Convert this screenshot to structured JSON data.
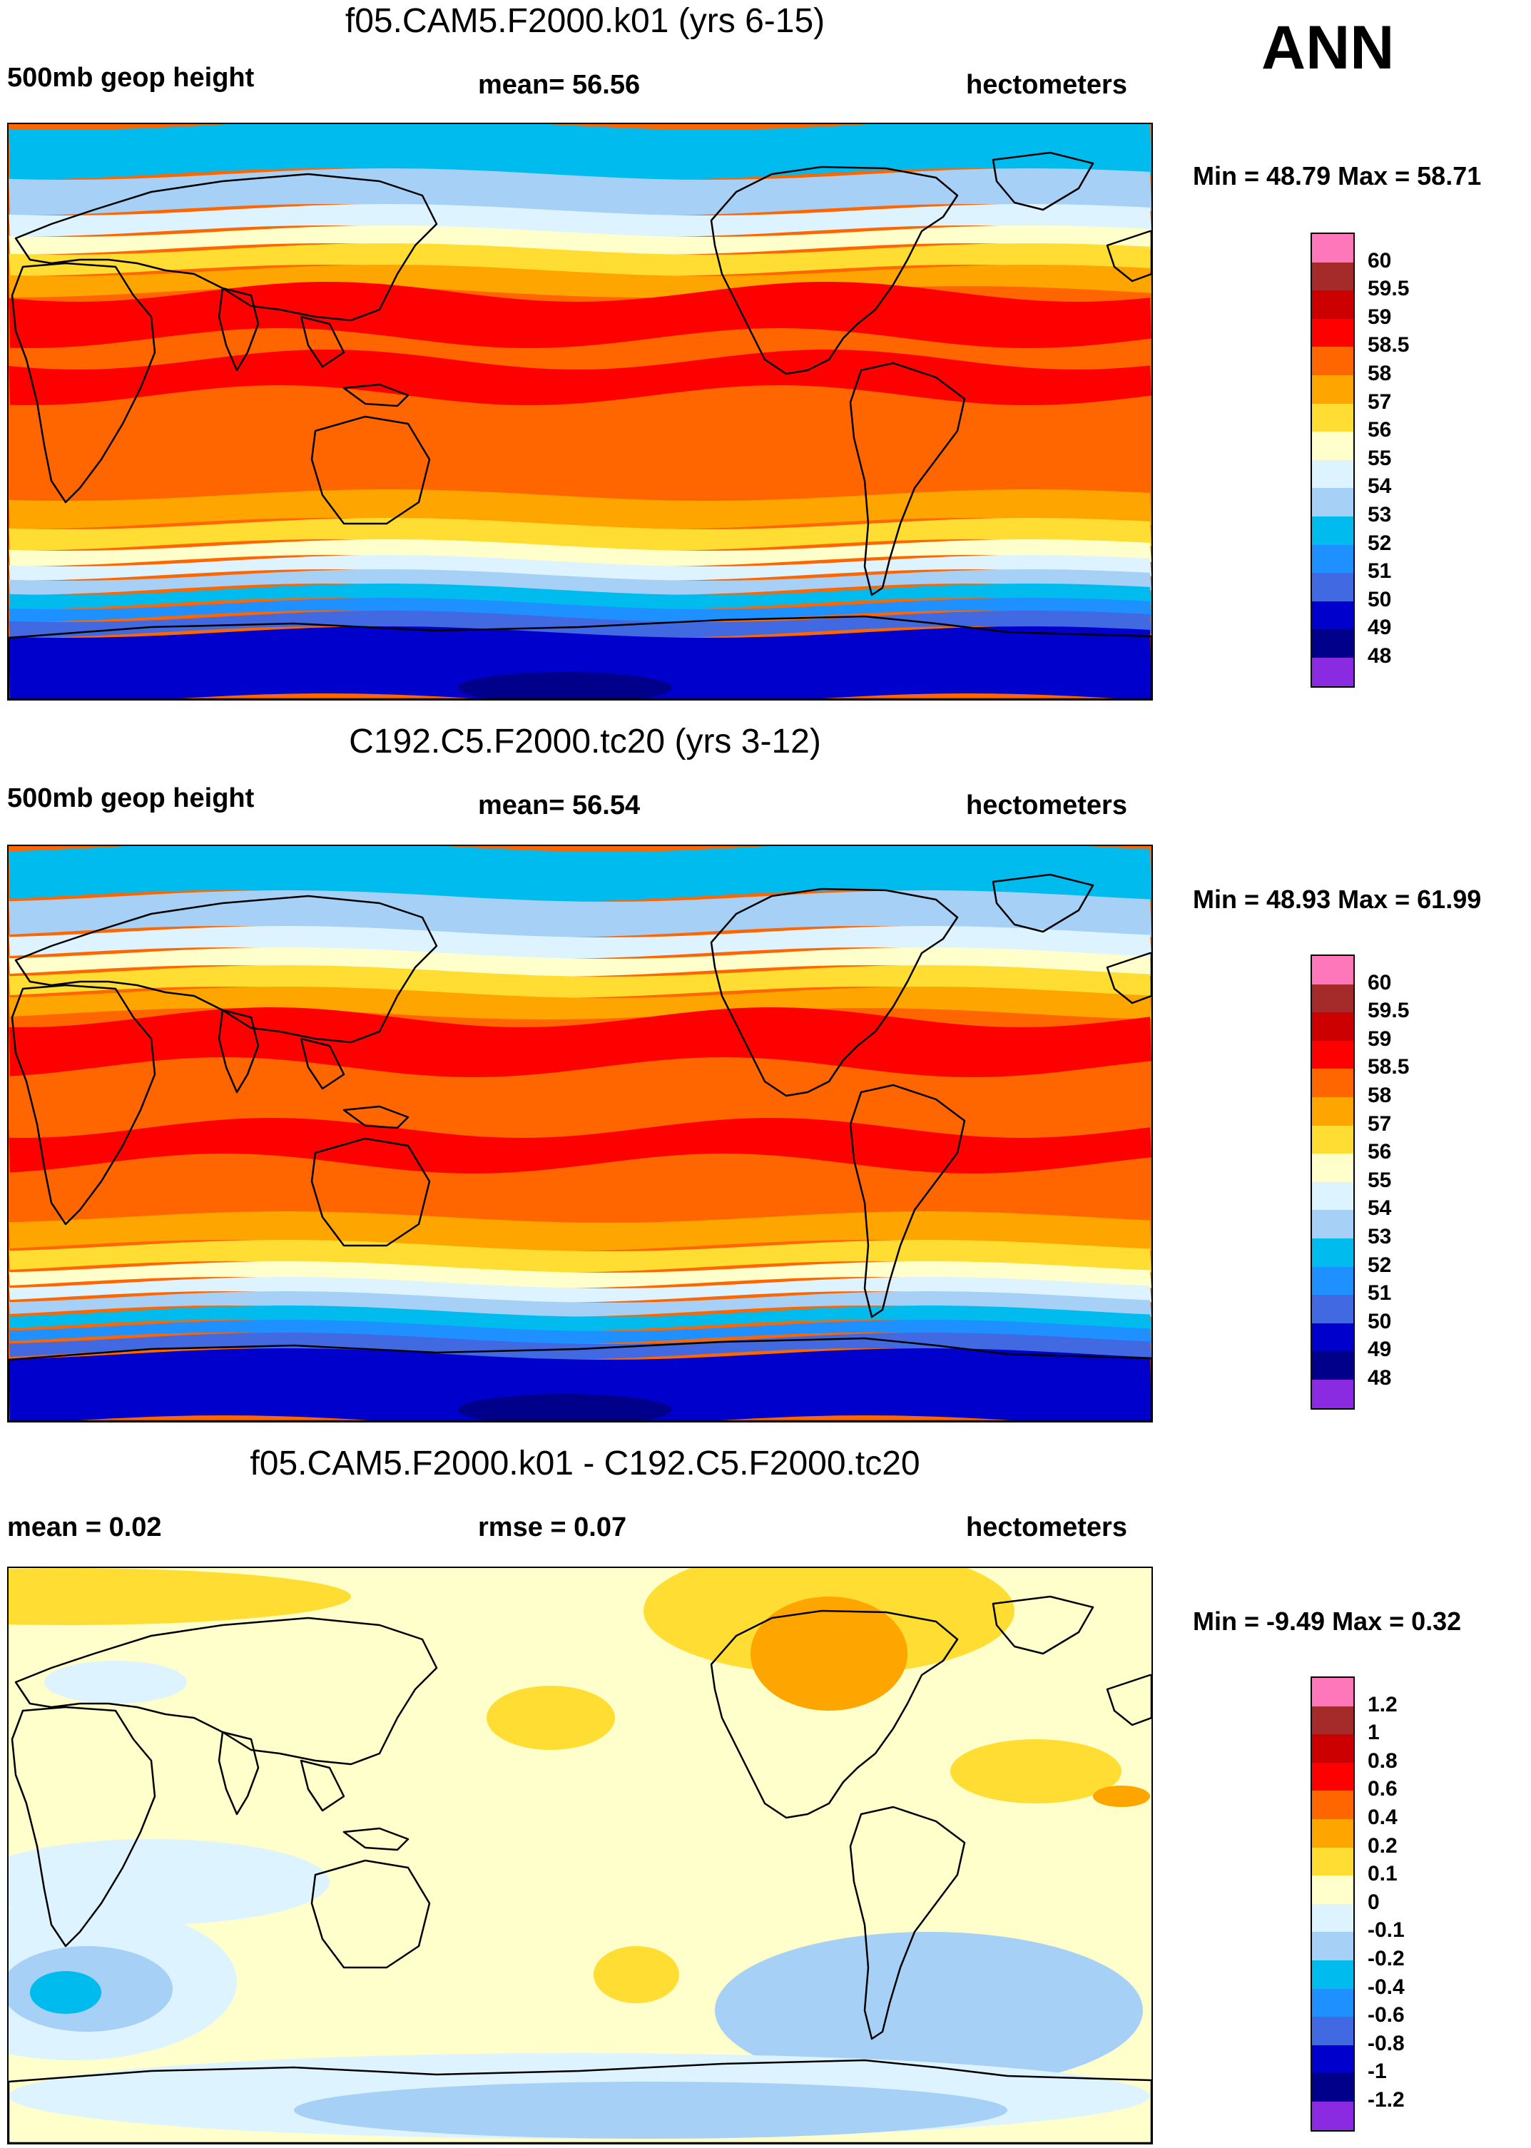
{
  "season": "ANN",
  "panels": [
    {
      "id": "panel1",
      "title": "f05.CAM5.F2000.k01 (yrs 6-15)",
      "left_label": "500mb geop height",
      "center_label": "mean=  56.56",
      "right_label": "hectometers",
      "minmax": "Min =  48.79 Max =  58.71",
      "map_type": "absolute",
      "colorbar": {
        "colors": [
          "#ff77bb",
          "#a52a2a",
          "#cc0000",
          "#ff0000",
          "#ff6600",
          "#ffa500",
          "#ffdd33",
          "#ffffcc",
          "#ddf3ff",
          "#a6d0f5",
          "#00bbee",
          "#1e90ff",
          "#4169e1",
          "#0000cd",
          "#00008b",
          "#8a2be2"
        ],
        "labels": [
          "60",
          "59.5",
          "59",
          "58.5",
          "58",
          "57",
          "56",
          "55",
          "54",
          "53",
          "52",
          "51",
          "50",
          "49",
          "48"
        ]
      }
    },
    {
      "id": "panel2",
      "title": "C192.C5.F2000.tc20 (yrs 3-12)",
      "left_label": "500mb geop height",
      "center_label": "mean=  56.54",
      "right_label": "hectometers",
      "minmax": "Min =  48.93 Max =  61.99",
      "map_type": "absolute",
      "colorbar": {
        "colors": [
          "#ff77bb",
          "#a52a2a",
          "#cc0000",
          "#ff0000",
          "#ff6600",
          "#ffa500",
          "#ffdd33",
          "#ffffcc",
          "#ddf3ff",
          "#a6d0f5",
          "#00bbee",
          "#1e90ff",
          "#4169e1",
          "#0000cd",
          "#00008b",
          "#8a2be2"
        ],
        "labels": [
          "60",
          "59.5",
          "59",
          "58.5",
          "58",
          "57",
          "56",
          "55",
          "54",
          "53",
          "52",
          "51",
          "50",
          "49",
          "48"
        ]
      }
    },
    {
      "id": "panel3",
      "title": "f05.CAM5.F2000.k01 - C192.C5.F2000.tc20",
      "left_label": "mean =   0.02",
      "center_label": "rmse =   0.07",
      "right_label": "hectometers",
      "minmax": "Min =  -9.49 Max =   0.32",
      "map_type": "difference",
      "colorbar": {
        "colors": [
          "#ff77bb",
          "#a52a2a",
          "#cc0000",
          "#ff0000",
          "#ff6600",
          "#ffa500",
          "#ffdd33",
          "#ffffcc",
          "#ddf3ff",
          "#a6d0f5",
          "#00bbee",
          "#1e90ff",
          "#4169e1",
          "#0000cd",
          "#00008b",
          "#8a2be2"
        ],
        "labels": [
          "1.2",
          "1",
          "0.8",
          "0.6",
          "0.4",
          "0.2",
          "0.1",
          "0",
          "-0.1",
          "-0.2",
          "-0.4",
          "-0.6",
          "-0.8",
          "-1",
          "-1.2"
        ]
      }
    }
  ]
}
